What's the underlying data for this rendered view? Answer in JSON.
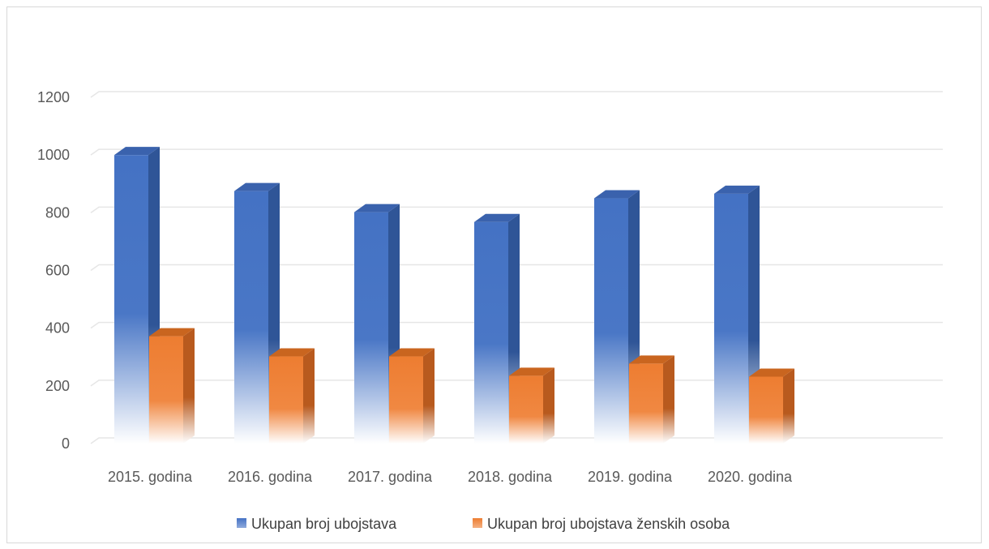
{
  "chart_data": {
    "type": "bar",
    "title": "",
    "xlabel": "",
    "ylabel": "",
    "categories": [
      "2015. godina",
      "2016. godina",
      "2017. godina",
      "2018. godina",
      "2019. godina",
      "2020. godina"
    ],
    "series": [
      {
        "name": "Ukupan broj ubojstava",
        "values": [
          1000,
          875,
          802,
          768,
          850,
          866
        ],
        "color": "#4472C4"
      },
      {
        "name": "Ukupan broj ubojstava ženskih osoba",
        "values": [
          372,
          302,
          302,
          235,
          277,
          232
        ],
        "color": "#ED7D31"
      }
    ],
    "ylim": [
      0,
      1200
    ],
    "yticks": [
      0,
      200,
      400,
      600,
      800,
      1000,
      1200
    ],
    "grid": true,
    "legend_position": "bottom",
    "style": "3d-column-gradient"
  }
}
